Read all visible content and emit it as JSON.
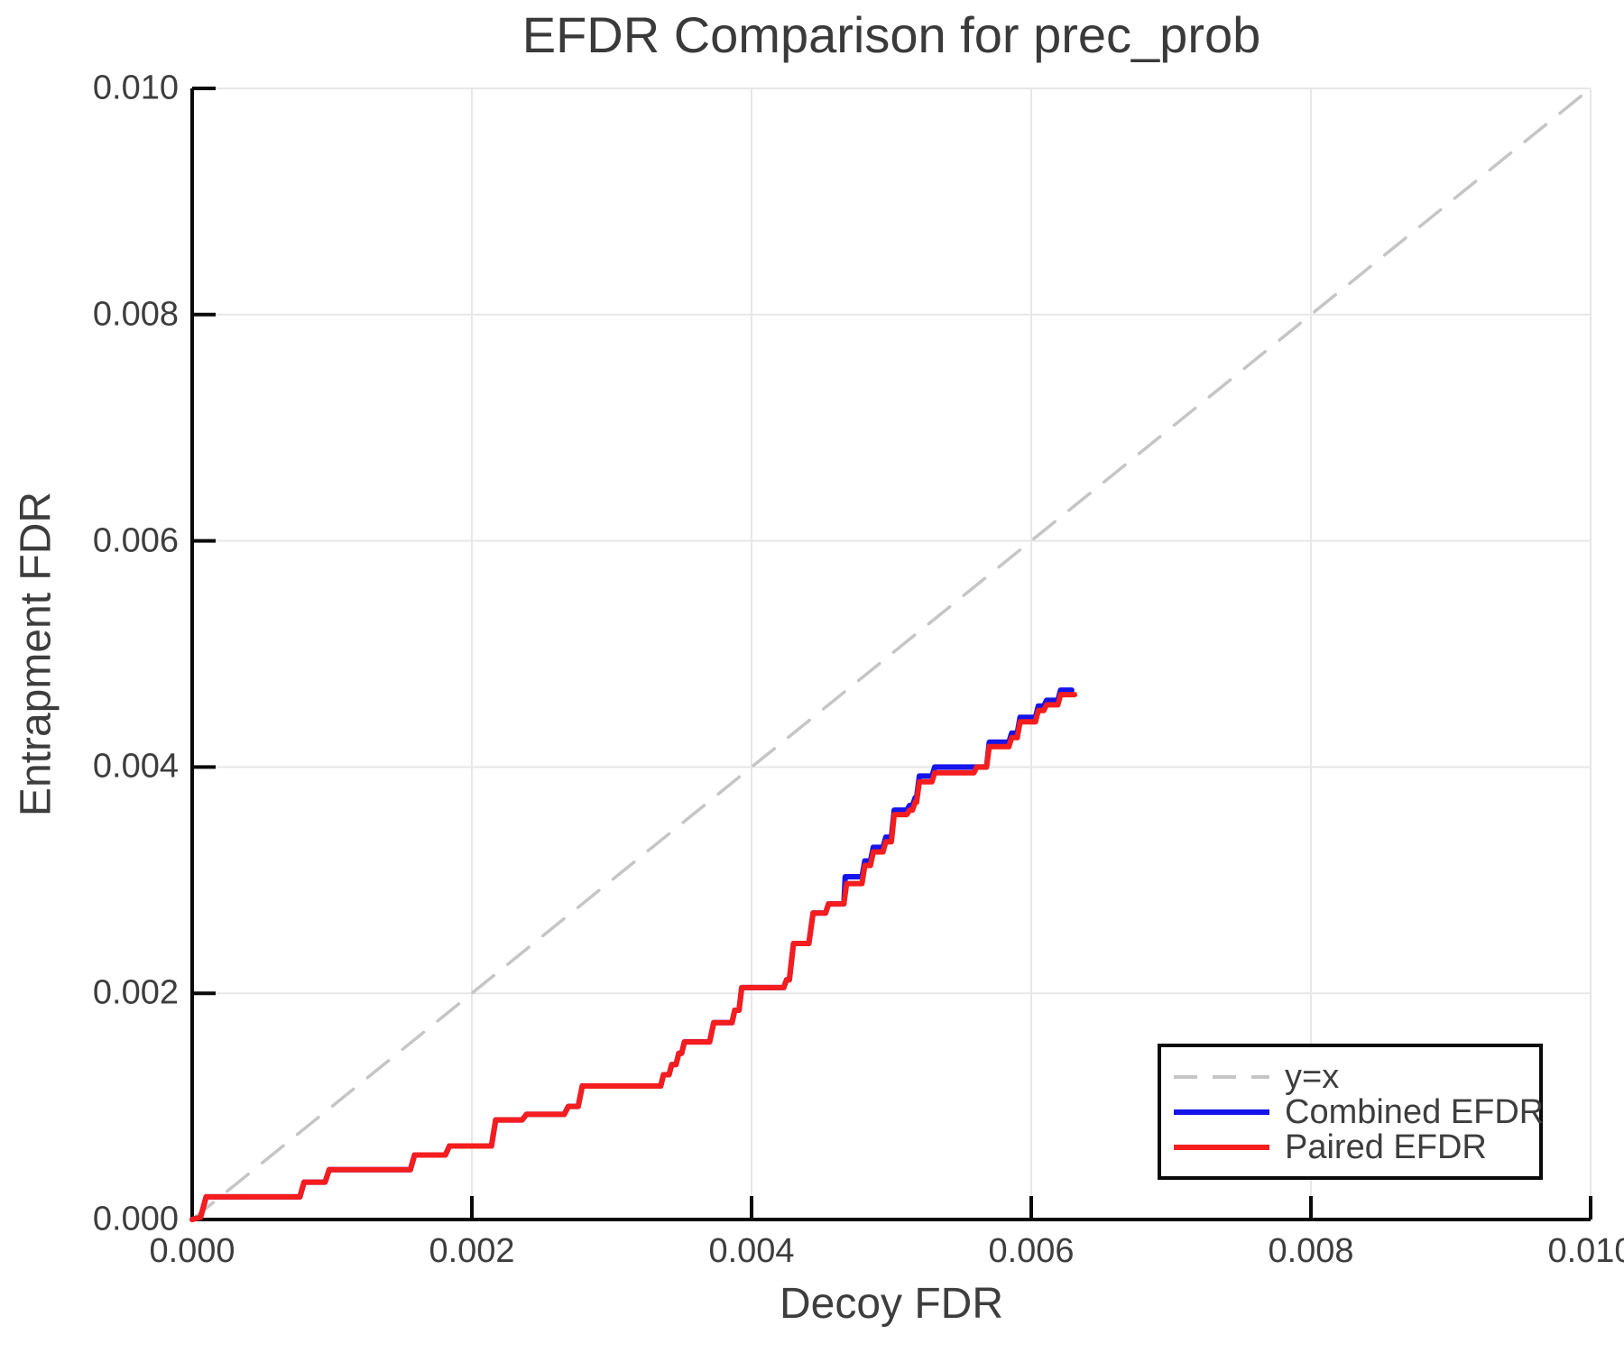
{
  "chart_data": {
    "type": "line",
    "title": "EFDR Comparison for prec_prob",
    "xlabel": "Decoy FDR",
    "ylabel": "Entrapment FDR",
    "xlim": [
      0.0,
      0.01
    ],
    "ylim": [
      0.0,
      0.01
    ],
    "grid": true,
    "xticks": {
      "values": [
        0.0,
        0.002,
        0.004,
        0.006,
        0.008,
        0.01
      ],
      "labels": [
        "0.000",
        "0.002",
        "0.004",
        "0.006",
        "0.008",
        "0.010"
      ]
    },
    "yticks": {
      "values": [
        0.0,
        0.002,
        0.004,
        0.006,
        0.008,
        0.01
      ],
      "labels": [
        "0.000",
        "0.002",
        "0.004",
        "0.006",
        "0.008",
        "0.010"
      ]
    },
    "colors": {
      "identity_line": "#c5c5c5",
      "combined": "#1414eb",
      "paired": "#f51d1d",
      "grid": "#e7e7e7",
      "axis": "#0a0a0a",
      "text": "#3d3d3d"
    },
    "legend": {
      "position": "lower right",
      "entries": [
        {
          "label": "y=x",
          "style": "dashed",
          "color": "#c5c5c5"
        },
        {
          "label": "Combined EFDR",
          "style": "solid",
          "color": "#1414eb"
        },
        {
          "label": "Paired EFDR",
          "style": "solid",
          "color": "#f51d1d"
        }
      ]
    },
    "series": [
      {
        "name": "y=x",
        "style": "dashed",
        "color": "#c5c5c5",
        "width": 3.5,
        "points": [
          [
            0.0,
            0.0
          ],
          [
            0.01,
            0.01
          ]
        ]
      },
      {
        "name": "Combined EFDR",
        "style": "solid",
        "color": "#1414eb",
        "width": 6,
        "points": [
          [
            0.0,
            0.0
          ],
          [
            6e-05,
            2e-05
          ],
          [
            0.0001,
            0.0002
          ],
          [
            0.00077,
            0.0002
          ],
          [
            0.0008,
            0.00033
          ],
          [
            0.00095,
            0.00033
          ],
          [
            0.00098,
            0.00044
          ],
          [
            0.00156,
            0.00044
          ],
          [
            0.00159,
            0.00057
          ],
          [
            0.00181,
            0.00057
          ],
          [
            0.00184,
            0.00065
          ],
          [
            0.00214,
            0.00065
          ],
          [
            0.00217,
            0.00088
          ],
          [
            0.00236,
            0.00088
          ],
          [
            0.00239,
            0.00093
          ],
          [
            0.00266,
            0.00093
          ],
          [
            0.00269,
            0.001
          ],
          [
            0.00276,
            0.001
          ],
          [
            0.00279,
            0.00118
          ],
          [
            0.00335,
            0.00118
          ],
          [
            0.00337,
            0.00128
          ],
          [
            0.00341,
            0.00128
          ],
          [
            0.00343,
            0.00137
          ],
          [
            0.00346,
            0.00137
          ],
          [
            0.00348,
            0.00147
          ],
          [
            0.0035,
            0.00147
          ],
          [
            0.00352,
            0.00157
          ],
          [
            0.0037,
            0.00157
          ],
          [
            0.00373,
            0.00174
          ],
          [
            0.00386,
            0.00174
          ],
          [
            0.00388,
            0.00185
          ],
          [
            0.00391,
            0.00185
          ],
          [
            0.00393,
            0.00205
          ],
          [
            0.00423,
            0.00205
          ],
          [
            0.00425,
            0.00212
          ],
          [
            0.00427,
            0.00212
          ],
          [
            0.0043,
            0.00244
          ],
          [
            0.00441,
            0.00244
          ],
          [
            0.00444,
            0.00271
          ],
          [
            0.00453,
            0.00271
          ],
          [
            0.00455,
            0.00279
          ],
          [
            0.00466,
            0.00279
          ],
          [
            0.00467,
            0.00303
          ],
          [
            0.00479,
            0.00303
          ],
          [
            0.00481,
            0.00317
          ],
          [
            0.00485,
            0.00317
          ],
          [
            0.00487,
            0.00329
          ],
          [
            0.00494,
            0.00329
          ],
          [
            0.00496,
            0.00338
          ],
          [
            0.005,
            0.00338
          ],
          [
            0.00502,
            0.00362
          ],
          [
            0.00511,
            0.00362
          ],
          [
            0.00513,
            0.00366
          ],
          [
            0.00515,
            0.00366
          ],
          [
            0.00517,
            0.00373
          ],
          [
            0.00518,
            0.00373
          ],
          [
            0.0052,
            0.00392
          ],
          [
            0.00529,
            0.00392
          ],
          [
            0.00531,
            0.004
          ],
          [
            0.00568,
            0.004
          ],
          [
            0.0057,
            0.00422
          ],
          [
            0.00584,
            0.00422
          ],
          [
            0.00586,
            0.0043
          ],
          [
            0.0059,
            0.0043
          ],
          [
            0.00592,
            0.00444
          ],
          [
            0.00603,
            0.00444
          ],
          [
            0.00605,
            0.00454
          ],
          [
            0.00609,
            0.00454
          ],
          [
            0.00611,
            0.00459
          ],
          [
            0.00619,
            0.00459
          ],
          [
            0.00621,
            0.00468
          ],
          [
            0.00629,
            0.00468
          ]
        ]
      },
      {
        "name": "Paired EFDR",
        "style": "solid",
        "color": "#f51d1d",
        "width": 6,
        "points": [
          [
            0.0,
            0.0
          ],
          [
            6e-05,
            2e-05
          ],
          [
            0.0001,
            0.0002
          ],
          [
            0.00077,
            0.0002
          ],
          [
            0.0008,
            0.00033
          ],
          [
            0.00095,
            0.00033
          ],
          [
            0.00098,
            0.00044
          ],
          [
            0.00156,
            0.00044
          ],
          [
            0.00159,
            0.00057
          ],
          [
            0.00181,
            0.00057
          ],
          [
            0.00184,
            0.00065
          ],
          [
            0.00214,
            0.00065
          ],
          [
            0.00217,
            0.00088
          ],
          [
            0.00236,
            0.00088
          ],
          [
            0.00239,
            0.00093
          ],
          [
            0.00266,
            0.00093
          ],
          [
            0.00269,
            0.001
          ],
          [
            0.00276,
            0.001
          ],
          [
            0.00279,
            0.00118
          ],
          [
            0.00335,
            0.00118
          ],
          [
            0.00337,
            0.00128
          ],
          [
            0.00341,
            0.00128
          ],
          [
            0.00343,
            0.00137
          ],
          [
            0.00346,
            0.00137
          ],
          [
            0.00348,
            0.00147
          ],
          [
            0.0035,
            0.00147
          ],
          [
            0.00352,
            0.00157
          ],
          [
            0.0037,
            0.00157
          ],
          [
            0.00373,
            0.00174
          ],
          [
            0.00386,
            0.00174
          ],
          [
            0.00388,
            0.00185
          ],
          [
            0.00391,
            0.00185
          ],
          [
            0.00393,
            0.00205
          ],
          [
            0.00423,
            0.00205
          ],
          [
            0.00425,
            0.00212
          ],
          [
            0.00427,
            0.00212
          ],
          [
            0.0043,
            0.00244
          ],
          [
            0.00441,
            0.00244
          ],
          [
            0.00444,
            0.00271
          ],
          [
            0.00453,
            0.00271
          ],
          [
            0.00455,
            0.00279
          ],
          [
            0.00466,
            0.00279
          ],
          [
            0.00468,
            0.00297
          ],
          [
            0.00479,
            0.00297
          ],
          [
            0.00481,
            0.00313
          ],
          [
            0.00485,
            0.00313
          ],
          [
            0.00487,
            0.00325
          ],
          [
            0.00494,
            0.00325
          ],
          [
            0.00496,
            0.00334
          ],
          [
            0.005,
            0.00334
          ],
          [
            0.00502,
            0.00358
          ],
          [
            0.00511,
            0.00358
          ],
          [
            0.00513,
            0.00362
          ],
          [
            0.00515,
            0.00362
          ],
          [
            0.00517,
            0.00369
          ],
          [
            0.00518,
            0.00369
          ],
          [
            0.0052,
            0.00387
          ],
          [
            0.00529,
            0.00387
          ],
          [
            0.00531,
            0.00395
          ],
          [
            0.00559,
            0.00395
          ],
          [
            0.00561,
            0.004
          ],
          [
            0.00568,
            0.004
          ],
          [
            0.0057,
            0.00418
          ],
          [
            0.00584,
            0.00418
          ],
          [
            0.00586,
            0.00426
          ],
          [
            0.0059,
            0.00426
          ],
          [
            0.00592,
            0.0044
          ],
          [
            0.00603,
            0.0044
          ],
          [
            0.00605,
            0.0045
          ],
          [
            0.00609,
            0.0045
          ],
          [
            0.00611,
            0.00455
          ],
          [
            0.00619,
            0.00455
          ],
          [
            0.00621,
            0.00464
          ],
          [
            0.00631,
            0.00464
          ]
        ]
      }
    ]
  }
}
